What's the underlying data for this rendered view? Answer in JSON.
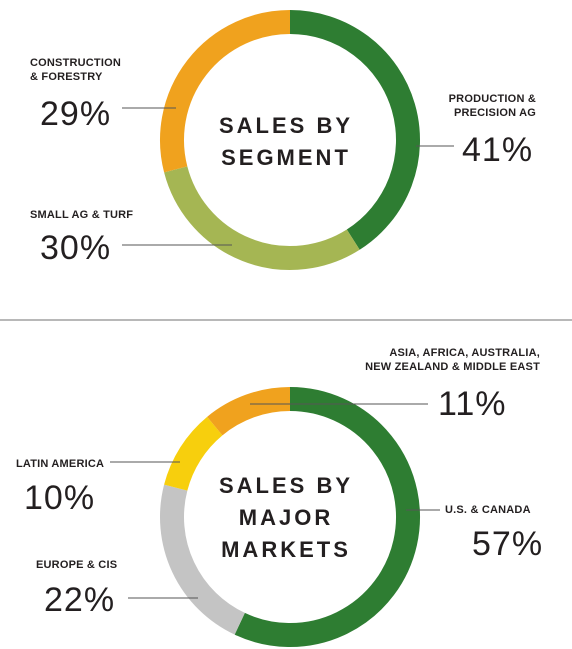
{
  "colors": {
    "green": "#2e7d32",
    "orange": "#f0a21e",
    "olive": "#a5b653",
    "yellow": "#f7cf0d",
    "gray": "#c4c4c4",
    "line": "#555555",
    "divider": "#b8b8b8"
  },
  "chart_data": [
    {
      "type": "pie",
      "title": "SALES BY SEGMENT",
      "title_lines": [
        "SALES BY",
        "SEGMENT"
      ],
      "donut": true,
      "slices": [
        {
          "label": "PRODUCTION & PRECISION AG",
          "label_lines": [
            "PRODUCTION &",
            "PRECISION AG"
          ],
          "value": 41,
          "display": "41%",
          "color": "#2e7d32"
        },
        {
          "label": "SMALL AG & TURF",
          "label_lines": [
            "SMALL AG & TURF"
          ],
          "value": 30,
          "display": "30%",
          "color": "#a5b653"
        },
        {
          "label": "CONSTRUCTION & FORESTRY",
          "label_lines": [
            "CONSTRUCTION",
            "& FORESTRY"
          ],
          "value": 29,
          "display": "29%",
          "color": "#f0a21e"
        }
      ]
    },
    {
      "type": "pie",
      "title": "SALES BY MAJOR MARKETS",
      "title_lines": [
        "SALES BY",
        "MAJOR",
        "MARKETS"
      ],
      "donut": true,
      "slices": [
        {
          "label": "U.S. & CANADA",
          "label_lines": [
            "U.S. & CANADA"
          ],
          "value": 57,
          "display": "57%",
          "color": "#2e7d32"
        },
        {
          "label": "EUROPE & CIS",
          "label_lines": [
            "EUROPE & CIS"
          ],
          "value": 22,
          "display": "22%",
          "color": "#c4c4c4"
        },
        {
          "label": "LATIN AMERICA",
          "label_lines": [
            "LATIN AMERICA"
          ],
          "value": 10,
          "display": "10%",
          "color": "#f7cf0d"
        },
        {
          "label": "ASIA, AFRICA, AUSTRALIA, NEW ZEALAND & MIDDLE EAST",
          "label_lines": [
            "ASIA, AFRICA, AUSTRALIA,",
            "NEW ZEALAND & MIDDLE EAST"
          ],
          "value": 11,
          "display": "11%",
          "color": "#f0a21e"
        }
      ]
    }
  ]
}
